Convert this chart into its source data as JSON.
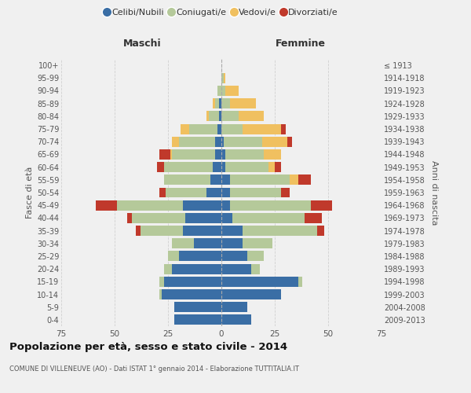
{
  "age_groups": [
    "0-4",
    "5-9",
    "10-14",
    "15-19",
    "20-24",
    "25-29",
    "30-34",
    "35-39",
    "40-44",
    "45-49",
    "50-54",
    "55-59",
    "60-64",
    "65-69",
    "70-74",
    "75-79",
    "80-84",
    "85-89",
    "90-94",
    "95-99",
    "100+"
  ],
  "birth_years": [
    "2009-2013",
    "2004-2008",
    "1999-2003",
    "1994-1998",
    "1989-1993",
    "1984-1988",
    "1979-1983",
    "1974-1978",
    "1969-1973",
    "1964-1968",
    "1959-1963",
    "1954-1958",
    "1949-1953",
    "1944-1948",
    "1939-1943",
    "1934-1938",
    "1929-1933",
    "1924-1928",
    "1919-1923",
    "1914-1918",
    "≤ 1913"
  ],
  "maschi_celibi": [
    22,
    22,
    28,
    27,
    23,
    20,
    13,
    18,
    17,
    18,
    7,
    5,
    4,
    3,
    3,
    2,
    1,
    1,
    0,
    0,
    0
  ],
  "maschi_coniugati": [
    0,
    0,
    1,
    2,
    4,
    5,
    10,
    20,
    25,
    31,
    19,
    22,
    23,
    20,
    17,
    13,
    5,
    2,
    2,
    0,
    0
  ],
  "maschi_vedove": [
    0,
    0,
    0,
    0,
    0,
    0,
    0,
    0,
    0,
    0,
    0,
    0,
    0,
    1,
    3,
    4,
    1,
    1,
    0,
    0,
    0
  ],
  "maschi_divorziate": [
    0,
    0,
    0,
    0,
    0,
    0,
    0,
    2,
    2,
    10,
    3,
    0,
    3,
    5,
    0,
    0,
    0,
    0,
    0,
    0,
    0
  ],
  "femmine_nubili": [
    14,
    12,
    28,
    36,
    14,
    12,
    10,
    10,
    5,
    4,
    4,
    4,
    2,
    2,
    1,
    0,
    0,
    0,
    0,
    0,
    0
  ],
  "femmine_coniugate": [
    0,
    0,
    0,
    2,
    4,
    8,
    14,
    35,
    34,
    38,
    24,
    28,
    20,
    18,
    18,
    10,
    8,
    4,
    2,
    1,
    0
  ],
  "femmine_vedove": [
    0,
    0,
    0,
    0,
    0,
    0,
    0,
    0,
    0,
    0,
    0,
    4,
    3,
    8,
    12,
    18,
    12,
    12,
    6,
    1,
    0
  ],
  "femmine_divorziate": [
    0,
    0,
    0,
    0,
    0,
    0,
    0,
    3,
    8,
    10,
    4,
    6,
    3,
    0,
    2,
    2,
    0,
    0,
    0,
    0,
    0
  ],
  "color_celibi": "#3a6ea5",
  "color_coniugati": "#b5c99a",
  "color_vedove": "#f0c060",
  "color_divorziate": "#c0392b",
  "xlim": 75,
  "title": "Popolazione per età, sesso e stato civile - 2014",
  "subtitle": "COMUNE DI VILLENEUVE (AO) - Dati ISTAT 1° gennaio 2014 - Elaborazione TUTTITALIA.IT",
  "ylabel_left": "Fasce di età",
  "ylabel_right": "Anni di nascita",
  "label_maschi": "Maschi",
  "label_femmine": "Femmine",
  "legend_labels": [
    "Celibi/Nubili",
    "Coniugati/e",
    "Vedovi/e",
    "Divorziati/e"
  ],
  "bg_color": "#f0f0f0",
  "grid_color": "#d0d0d0"
}
